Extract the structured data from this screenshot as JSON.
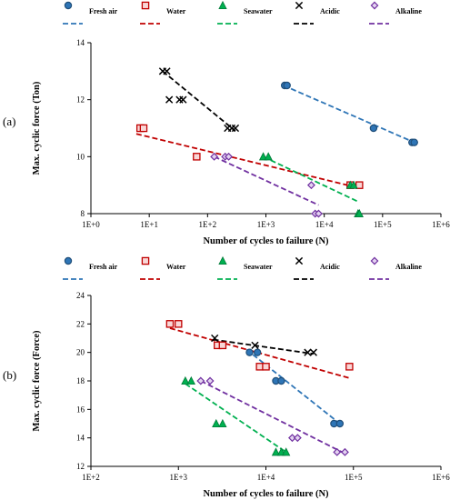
{
  "chart_data": [
    {
      "panel_label": "(a)",
      "type": "scatter",
      "xlabel": "Number of cycles to failure (N)",
      "ylabel": "Max. cyclic force (Ton)",
      "xscale": "log",
      "xlim": [
        1,
        1000000
      ],
      "ylim": [
        8,
        14
      ],
      "xticks": [
        "1E+0",
        "1E+1",
        "1E+2",
        "1E+3",
        "1E+4",
        "1E+5",
        "1E+6"
      ],
      "yticks": [
        "8",
        "10",
        "12",
        "14"
      ],
      "legend_position": "top",
      "series": [
        {
          "name": "Fresh air",
          "marker": "circle",
          "color": "#2e75b6",
          "x": [
            2100,
            2300,
            70000,
            320000,
            350000
          ],
          "y": [
            12.5,
            12.5,
            11.0,
            10.5,
            10.5
          ],
          "trend": [
            [
              2000,
              12.5
            ],
            [
              350000,
              10.5
            ]
          ]
        },
        {
          "name": "Water",
          "marker": "square",
          "color": "#c00000",
          "x": [
            7,
            8,
            65,
            28000,
            40000
          ],
          "y": [
            11.0,
            11.0,
            10.0,
            9.0,
            9.0
          ],
          "trend": [
            [
              6,
              10.8
            ],
            [
              40000,
              8.9
            ]
          ]
        },
        {
          "name": "Seawater",
          "marker": "triangle",
          "color": "#00b050",
          "x": [
            900,
            1100,
            28000,
            32000,
            38000,
            40000
          ],
          "y": [
            10.0,
            10.0,
            9.0,
            9.0,
            8.0,
            8.0
          ],
          "trend": [
            [
              900,
              10.0
            ],
            [
              40000,
              8.4
            ]
          ]
        },
        {
          "name": "Acidic",
          "marker": "x",
          "color": "#000000",
          "x": [
            17,
            20,
            22,
            33,
            38,
            220,
            260,
            300
          ],
          "y": [
            13.0,
            13.0,
            12.0,
            12.0,
            12.0,
            11.0,
            11.0,
            11.0
          ],
          "trend": [
            [
              17,
              13.0
            ],
            [
              300,
              10.9
            ]
          ]
        },
        {
          "name": "Alkaline",
          "marker": "diamond",
          "color": "#7030a0",
          "x": [
            130,
            200,
            230,
            6000,
            7000,
            8000
          ],
          "y": [
            10.0,
            10.0,
            10.0,
            9.0,
            8.0,
            8.0
          ],
          "trend": [
            [
              130,
              10.0
            ],
            [
              8000,
              8.3
            ]
          ]
        }
      ]
    },
    {
      "panel_label": "(b)",
      "type": "scatter",
      "xlabel": "Number of cycles to failure (N)",
      "ylabel": "Max. cyclic force (Force)",
      "xscale": "log",
      "xlim": [
        100,
        1000000
      ],
      "ylim": [
        12,
        24
      ],
      "xticks": [
        "1E+2",
        "1E+3",
        "1E+4",
        "1E+5",
        "1E+6"
      ],
      "yticks": [
        "12",
        "14",
        "16",
        "18",
        "20",
        "22",
        "24"
      ],
      "legend_position": "top",
      "series": [
        {
          "name": "Fresh air",
          "marker": "circle",
          "color": "#2e75b6",
          "x": [
            6500,
            8000,
            13000,
            15000,
            60000,
            70000
          ],
          "y": [
            20.0,
            20.0,
            18.0,
            18.0,
            15.0,
            15.0
          ],
          "trend": [
            [
              6000,
              20.2
            ],
            [
              70000,
              15.0
            ]
          ]
        },
        {
          "name": "Water",
          "marker": "square",
          "color": "#c00000",
          "x": [
            800,
            1000,
            2800,
            3200,
            8500,
            10000,
            90000
          ],
          "y": [
            22.0,
            22.0,
            20.5,
            20.5,
            19.0,
            19.0,
            19.0
          ],
          "trend": [
            [
              800,
              21.7
            ],
            [
              90000,
              18.2
            ]
          ]
        },
        {
          "name": "Seawater",
          "marker": "triangle",
          "color": "#00b050",
          "x": [
            1200,
            1400,
            2700,
            3200,
            13000,
            15000,
            17000
          ],
          "y": [
            18.0,
            18.0,
            15.0,
            15.0,
            13.0,
            13.0,
            13.0
          ],
          "trend": [
            [
              1200,
              17.8
            ],
            [
              17000,
              13.0
            ]
          ]
        },
        {
          "name": "Acidic",
          "marker": "x",
          "color": "#000000",
          "x": [
            2600,
            7500,
            30000,
            35000
          ],
          "y": [
            21.0,
            20.5,
            20.0,
            20.0
          ],
          "trend": [
            [
              2500,
              20.9
            ],
            [
              35000,
              19.9
            ]
          ]
        },
        {
          "name": "Alkaline",
          "marker": "diamond",
          "color": "#7030a0",
          "x": [
            1800,
            2300,
            20000,
            23000,
            65000,
            80000
          ],
          "y": [
            18.0,
            18.0,
            14.0,
            14.0,
            13.0,
            13.0
          ],
          "trend": [
            [
              1800,
              18.0
            ],
            [
              80000,
              12.9
            ]
          ]
        }
      ]
    }
  ]
}
